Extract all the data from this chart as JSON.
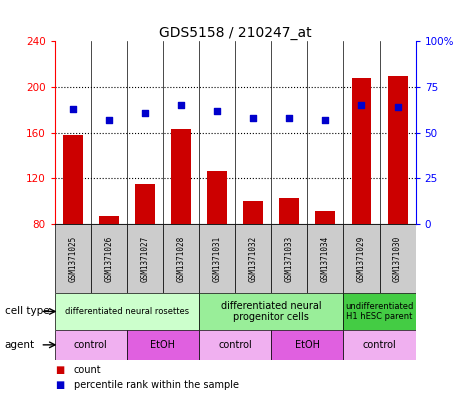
{
  "title": "GDS5158 / 210247_at",
  "samples": [
    "GSM1371025",
    "GSM1371026",
    "GSM1371027",
    "GSM1371028",
    "GSM1371031",
    "GSM1371032",
    "GSM1371033",
    "GSM1371034",
    "GSM1371029",
    "GSM1371030"
  ],
  "counts": [
    158,
    87,
    115,
    163,
    126,
    100,
    103,
    91,
    208,
    210
  ],
  "percentiles": [
    63,
    57,
    61,
    65,
    62,
    58,
    58,
    57,
    65,
    64
  ],
  "ymin": 80,
  "ymax": 240,
  "yticks": [
    80,
    120,
    160,
    200,
    240
  ],
  "y2ticks": [
    0,
    25,
    50,
    75,
    100
  ],
  "y2labels": [
    "0",
    "25",
    "50",
    "75",
    "100%"
  ],
  "cell_type_groups": [
    {
      "label": "differentiated neural rosettes",
      "start": 0,
      "end": 3,
      "color": "#ccffcc",
      "fontsize": 6
    },
    {
      "label": "differentiated neural\nprogenitor cells",
      "start": 4,
      "end": 7,
      "color": "#99ee99",
      "fontsize": 7
    },
    {
      "label": "undifferentiated\nH1 hESC parent",
      "start": 8,
      "end": 9,
      "color": "#44cc44",
      "fontsize": 6
    }
  ],
  "agent_groups": [
    {
      "label": "control",
      "start": 0,
      "end": 1,
      "color": "#f0b0f0"
    },
    {
      "label": "EtOH",
      "start": 2,
      "end": 3,
      "color": "#e060e0"
    },
    {
      "label": "control",
      "start": 4,
      "end": 5,
      "color": "#f0b0f0"
    },
    {
      "label": "EtOH",
      "start": 6,
      "end": 7,
      "color": "#e060e0"
    },
    {
      "label": "control",
      "start": 8,
      "end": 9,
      "color": "#f0b0f0"
    }
  ],
  "bar_color": "#cc0000",
  "dot_color": "#0000cc",
  "bar_width": 0.55,
  "sample_bg": "#cccccc"
}
